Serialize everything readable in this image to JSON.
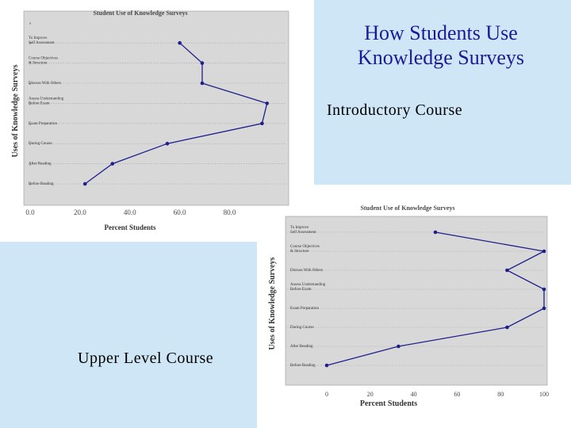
{
  "slide": {
    "title_line1": "How Students Use",
    "title_line2": "Knowledge Surveys",
    "label_intro": "Introductory Course",
    "label_upper": "Upper Level Course"
  },
  "colors": {
    "background": "#cfe6f6",
    "title": "#1a1a99",
    "line": "#1f1f8c",
    "plot_bg": "#d8d8d8"
  },
  "chart_data": [
    {
      "type": "line",
      "orientation": "horizontal",
      "title": "Student Use of Knowledge Surveys",
      "xlabel": "Percent Students",
      "ylabel": "Uses of Knowledge Surveys",
      "xlim": [
        0,
        90
      ],
      "xticks": [
        "0.0",
        "20.0",
        "40.0",
        "60.0",
        "80.0"
      ],
      "yticks": [
        "1",
        "2",
        "3",
        "4",
        "5",
        "6",
        "7",
        "8",
        "9"
      ],
      "grid": true,
      "categories": [
        "Before Reading",
        "After Reading",
        "During Course",
        "Exam Preparation",
        "Assess Understanding Before Exam",
        "Discuss With Others",
        "Course Objectives & Structure",
        "To Improve Self Assessment"
      ],
      "values": [
        22,
        33,
        55,
        93,
        95,
        69,
        69,
        60
      ]
    },
    {
      "type": "line",
      "orientation": "horizontal",
      "title": "Student Use of Knowledge Surveys",
      "xlabel": "Percent Students",
      "ylabel": "Uses of Knowledge Surveys",
      "xlim": [
        0,
        100
      ],
      "xticks": [
        "0",
        "20",
        "40",
        "60",
        "80",
        "100"
      ],
      "grid": true,
      "categories": [
        "Before Reading",
        "After Reading",
        "During Course",
        "Exam Preparation",
        "Assess Understanding Before Exam",
        "Discuss With Others",
        "Course Objectives & Structure",
        "To Improve Self Assessment"
      ],
      "values": [
        0,
        33,
        83,
        100,
        100,
        83,
        100,
        50
      ]
    }
  ]
}
